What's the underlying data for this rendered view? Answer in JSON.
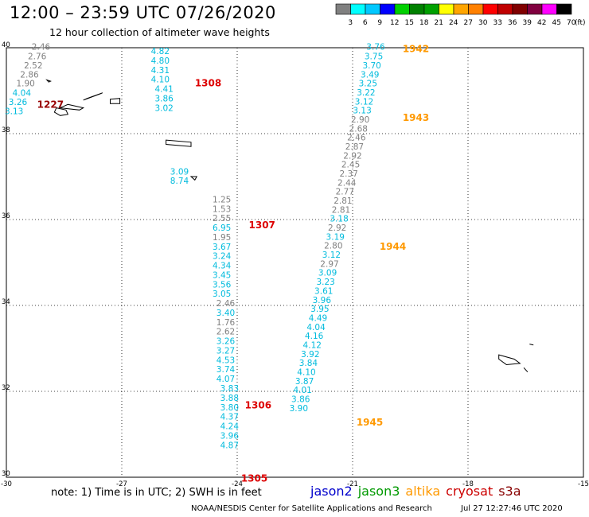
{
  "title": "12:00 – 23:59 UTC 07/26/2020",
  "subtitle": "12 hour collection of altimeter wave heights",
  "color_scale": {
    "unit": "(ft)",
    "colors": [
      "#808080",
      "#00ffff",
      "#00c8ff",
      "#0000ff",
      "#00d000",
      "#008000",
      "#00a000",
      "#ffff00",
      "#ffa500",
      "#ff8000",
      "#ff0000",
      "#c00000",
      "#800000",
      "#800040",
      "#ff00ff",
      "#000000"
    ],
    "labels": [
      "3",
      "6",
      "9",
      "12",
      "15",
      "18",
      "21",
      "24",
      "27",
      "30",
      "33",
      "36",
      "39",
      "42",
      "45",
      "70"
    ]
  },
  "lon_ticks": [
    "-30",
    "-27",
    "-24",
    "-21",
    "-18",
    "-15"
  ],
  "lat_ticks": [
    "40",
    "38",
    "36",
    "34",
    "32",
    "30"
  ],
  "passes": [
    {
      "label": "1942",
      "color": "#ff9900",
      "lon": -19.7,
      "lat": 39.9
    },
    {
      "label": "1943",
      "color": "#ff9900",
      "lon": -19.7,
      "lat": 38.3
    },
    {
      "label": "1944",
      "color": "#ff9900",
      "lon": -20.3,
      "lat": 35.3
    },
    {
      "label": "1945",
      "color": "#ff9900",
      "lon": -20.9,
      "lat": 31.2
    },
    {
      "label": "1308",
      "color": "#dd0000",
      "lon": -25.1,
      "lat": 39.1
    },
    {
      "label": "1307",
      "color": "#dd0000",
      "lon": -23.7,
      "lat": 35.8
    },
    {
      "label": "1306",
      "color": "#dd0000",
      "lon": -23.8,
      "lat": 31.6
    },
    {
      "label": "1305",
      "color": "#dd0000",
      "lon": -23.9,
      "lat": 29.9
    },
    {
      "label": "1227",
      "color": "#990000",
      "lon": -29.2,
      "lat": 38.6
    }
  ],
  "observations": [
    {
      "v": "2.46",
      "c": "#808080",
      "lon": -29.1,
      "lat": 39.95
    },
    {
      "v": "2.76",
      "c": "#808080",
      "lon": -29.2,
      "lat": 39.73
    },
    {
      "v": "2.52",
      "c": "#808080",
      "lon": -29.3,
      "lat": 39.52
    },
    {
      "v": "2.86",
      "c": "#808080",
      "lon": -29.4,
      "lat": 39.31
    },
    {
      "v": "1.90",
      "c": "#808080",
      "lon": -29.5,
      "lat": 39.1
    },
    {
      "v": "4.04",
      "c": "#00bbdd",
      "lon": -29.6,
      "lat": 38.88
    },
    {
      "v": "3.26",
      "c": "#00bbdd",
      "lon": -29.7,
      "lat": 38.67
    },
    {
      "v": "3.13",
      "c": "#00bbdd",
      "lon": -29.8,
      "lat": 38.45
    },
    {
      "v": "4.82",
      "c": "#00bbdd",
      "lon": -26.0,
      "lat": 39.85
    },
    {
      "v": "4.80",
      "c": "#00bbdd",
      "lon": -26.0,
      "lat": 39.63
    },
    {
      "v": "4.31",
      "c": "#00bbdd",
      "lon": -26.0,
      "lat": 39.41
    },
    {
      "v": "4.10",
      "c": "#00bbdd",
      "lon": -26.0,
      "lat": 39.19
    },
    {
      "v": "4.41",
      "c": "#00bbdd",
      "lon": -25.9,
      "lat": 38.97
    },
    {
      "v": "3.86",
      "c": "#00bbdd",
      "lon": -25.9,
      "lat": 38.75
    },
    {
      "v": "3.02",
      "c": "#00bbdd",
      "lon": -25.9,
      "lat": 38.53
    },
    {
      "v": "3.09",
      "c": "#00bbdd",
      "lon": -25.5,
      "lat": 37.05
    },
    {
      "v": "8.74",
      "c": "#00bbdd",
      "lon": -25.5,
      "lat": 36.83
    },
    {
      "v": "1.25",
      "c": "#808080",
      "lon": -24.4,
      "lat": 36.4
    },
    {
      "v": "1.53",
      "c": "#808080",
      "lon": -24.4,
      "lat": 36.18
    },
    {
      "v": "2.55",
      "c": "#808080",
      "lon": -24.4,
      "lat": 35.96
    },
    {
      "v": "6.95",
      "c": "#00bbdd",
      "lon": -24.4,
      "lat": 35.74
    },
    {
      "v": "1.95",
      "c": "#808080",
      "lon": -24.4,
      "lat": 35.52
    },
    {
      "v": "3.67",
      "c": "#00bbdd",
      "lon": -24.4,
      "lat": 35.3
    },
    {
      "v": "3.24",
      "c": "#00bbdd",
      "lon": -24.4,
      "lat": 35.08
    },
    {
      "v": "4.34",
      "c": "#00bbdd",
      "lon": -24.4,
      "lat": 34.86
    },
    {
      "v": "3.45",
      "c": "#00bbdd",
      "lon": -24.4,
      "lat": 34.64
    },
    {
      "v": "3.56",
      "c": "#00bbdd",
      "lon": -24.4,
      "lat": 34.42
    },
    {
      "v": "3.05",
      "c": "#00bbdd",
      "lon": -24.4,
      "lat": 34.2
    },
    {
      "v": "2.46",
      "c": "#808080",
      "lon": -24.3,
      "lat": 33.98
    },
    {
      "v": "3.40",
      "c": "#00bbdd",
      "lon": -24.3,
      "lat": 33.76
    },
    {
      "v": "1.76",
      "c": "#808080",
      "lon": -24.3,
      "lat": 33.54
    },
    {
      "v": "2.62",
      "c": "#808080",
      "lon": -24.3,
      "lat": 33.32
    },
    {
      "v": "3.26",
      "c": "#00bbdd",
      "lon": -24.3,
      "lat": 33.1
    },
    {
      "v": "3.27",
      "c": "#00bbdd",
      "lon": -24.3,
      "lat": 32.88
    },
    {
      "v": "4.53",
      "c": "#00bbdd",
      "lon": -24.3,
      "lat": 32.66
    },
    {
      "v": "3.74",
      "c": "#00bbdd",
      "lon": -24.3,
      "lat": 32.44
    },
    {
      "v": "4.07",
      "c": "#00bbdd",
      "lon": -24.3,
      "lat": 32.22
    },
    {
      "v": "3.83",
      "c": "#00bbdd",
      "lon": -24.2,
      "lat": 32.0
    },
    {
      "v": "3.88",
      "c": "#00bbdd",
      "lon": -24.2,
      "lat": 31.78
    },
    {
      "v": "3.80",
      "c": "#00bbdd",
      "lon": -24.2,
      "lat": 31.56
    },
    {
      "v": "4.37",
      "c": "#00bbdd",
      "lon": -24.2,
      "lat": 31.34
    },
    {
      "v": "4.24",
      "c": "#00bbdd",
      "lon": -24.2,
      "lat": 31.12
    },
    {
      "v": "3.96",
      "c": "#00bbdd",
      "lon": -24.2,
      "lat": 30.9
    },
    {
      "v": "4.87",
      "c": "#00bbdd",
      "lon": -24.2,
      "lat": 30.68
    },
    {
      "v": "3.76",
      "c": "#00bbdd",
      "lon": -20.4,
      "lat": 39.95
    },
    {
      "v": "3.75",
      "c": "#00bbdd",
      "lon": -20.45,
      "lat": 39.73
    },
    {
      "v": "3.70",
      "c": "#00bbdd",
      "lon": -20.5,
      "lat": 39.52
    },
    {
      "v": "3.49",
      "c": "#00bbdd",
      "lon": -20.55,
      "lat": 39.31
    },
    {
      "v": "3.25",
      "c": "#00bbdd",
      "lon": -20.6,
      "lat": 39.1
    },
    {
      "v": "3.22",
      "c": "#00bbdd",
      "lon": -20.65,
      "lat": 38.89
    },
    {
      "v": "3.12",
      "c": "#00bbdd",
      "lon": -20.7,
      "lat": 38.68
    },
    {
      "v": "3.13",
      "c": "#00bbdd",
      "lon": -20.75,
      "lat": 38.47
    },
    {
      "v": "2.90",
      "c": "#808080",
      "lon": -20.8,
      "lat": 38.26
    },
    {
      "v": "2.68",
      "c": "#808080",
      "lon": -20.85,
      "lat": 38.05
    },
    {
      "v": "2.46",
      "c": "#808080",
      "lon": -20.9,
      "lat": 37.84
    },
    {
      "v": "2.87",
      "c": "#808080",
      "lon": -20.95,
      "lat": 37.63
    },
    {
      "v": "2.92",
      "c": "#808080",
      "lon": -21.0,
      "lat": 37.42
    },
    {
      "v": "2.45",
      "c": "#808080",
      "lon": -21.05,
      "lat": 37.21
    },
    {
      "v": "2.37",
      "c": "#808080",
      "lon": -21.1,
      "lat": 37.0
    },
    {
      "v": "2.44",
      "c": "#808080",
      "lon": -21.15,
      "lat": 36.79
    },
    {
      "v": "2.77",
      "c": "#808080",
      "lon": -21.2,
      "lat": 36.58
    },
    {
      "v": "2.81",
      "c": "#808080",
      "lon": -21.25,
      "lat": 36.37
    },
    {
      "v": "2.81",
      "c": "#808080",
      "lon": -21.3,
      "lat": 36.16
    },
    {
      "v": "3.18",
      "c": "#00bbdd",
      "lon": -21.35,
      "lat": 35.95
    },
    {
      "v": "2.92",
      "c": "#808080",
      "lon": -21.4,
      "lat": 35.74
    },
    {
      "v": "3.19",
      "c": "#00bbdd",
      "lon": -21.45,
      "lat": 35.53
    },
    {
      "v": "2.80",
      "c": "#808080",
      "lon": -21.5,
      "lat": 35.32
    },
    {
      "v": "3.12",
      "c": "#00bbdd",
      "lon": -21.55,
      "lat": 35.11
    },
    {
      "v": "2.97",
      "c": "#808080",
      "lon": -21.6,
      "lat": 34.9
    },
    {
      "v": "3.09",
      "c": "#00bbdd",
      "lon": -21.65,
      "lat": 34.69
    },
    {
      "v": "3.23",
      "c": "#00bbdd",
      "lon": -21.7,
      "lat": 34.48
    },
    {
      "v": "3.61",
      "c": "#00bbdd",
      "lon": -21.75,
      "lat": 34.27
    },
    {
      "v": "3.96",
      "c": "#00bbdd",
      "lon": -21.8,
      "lat": 34.06
    },
    {
      "v": "3.95",
      "c": "#00bbdd",
      "lon": -21.85,
      "lat": 33.85
    },
    {
      "v": "4.49",
      "c": "#00bbdd",
      "lon": -21.9,
      "lat": 33.64
    },
    {
      "v": "4.04",
      "c": "#00bbdd",
      "lon": -21.95,
      "lat": 33.43
    },
    {
      "v": "4.16",
      "c": "#00bbdd",
      "lon": -22.0,
      "lat": 33.22
    },
    {
      "v": "4.12",
      "c": "#00bbdd",
      "lon": -22.05,
      "lat": 33.01
    },
    {
      "v": "3.92",
      "c": "#00bbdd",
      "lon": -22.1,
      "lat": 32.8
    },
    {
      "v": "3.84",
      "c": "#00bbdd",
      "lon": -22.15,
      "lat": 32.59
    },
    {
      "v": "4.10",
      "c": "#00bbdd",
      "lon": -22.2,
      "lat": 32.38
    },
    {
      "v": "3.87",
      "c": "#00bbdd",
      "lon": -22.25,
      "lat": 32.17
    },
    {
      "v": "4.01",
      "c": "#00bbdd",
      "lon": -22.3,
      "lat": 31.96
    },
    {
      "v": "3.86",
      "c": "#00bbdd",
      "lon": -22.35,
      "lat": 31.75
    },
    {
      "v": "3.90",
      "c": "#00bbdd",
      "lon": -22.4,
      "lat": 31.54
    }
  ],
  "islands": [
    {
      "name": "flores",
      "pts": [
        [
          -28.95,
          39.25
        ],
        [
          -28.85,
          39.22
        ],
        [
          -28.9,
          39.2
        ]
      ]
    },
    {
      "name": "graciosa-faial",
      "pts": [
        [
          -28.4,
          38.68
        ],
        [
          -28.0,
          38.6
        ],
        [
          -28.1,
          38.55
        ],
        [
          -28.6,
          38.6
        ]
      ]
    },
    {
      "name": "sao-jorge",
      "pts": [
        [
          -27.9,
          38.82
        ],
        [
          -27.5,
          38.95
        ],
        [
          -27.55,
          38.93
        ],
        [
          -28.0,
          38.78
        ]
      ]
    },
    {
      "name": "terceira",
      "pts": [
        [
          -27.3,
          38.8
        ],
        [
          -27.05,
          38.82
        ],
        [
          -27.05,
          38.7
        ],
        [
          -27.3,
          38.7
        ]
      ]
    },
    {
      "name": "pico-faial",
      "pts": [
        [
          -28.7,
          38.6
        ],
        [
          -28.45,
          38.55
        ],
        [
          -28.4,
          38.45
        ],
        [
          -28.6,
          38.42
        ],
        [
          -28.75,
          38.5
        ]
      ]
    },
    {
      "name": "sao-miguel",
      "pts": [
        [
          -25.85,
          37.85
        ],
        [
          -25.2,
          37.8
        ],
        [
          -25.2,
          37.7
        ],
        [
          -25.85,
          37.75
        ]
      ]
    },
    {
      "name": "santa-maria",
      "pts": [
        [
          -25.2,
          37.0
        ],
        [
          -25.05,
          37.0
        ],
        [
          -25.1,
          36.92
        ]
      ]
    },
    {
      "name": "madeira",
      "pts": [
        [
          -17.2,
          32.85
        ],
        [
          -16.8,
          32.75
        ],
        [
          -16.65,
          32.65
        ],
        [
          -17.0,
          32.62
        ],
        [
          -17.2,
          32.75
        ]
      ]
    },
    {
      "name": "porto-santo",
      "pts": [
        [
          -16.4,
          33.1
        ],
        [
          -16.3,
          33.08
        ]
      ]
    },
    {
      "name": "desertas",
      "pts": [
        [
          -16.55,
          32.55
        ],
        [
          -16.45,
          32.45
        ]
      ]
    }
  ],
  "note": "note: 1) Time is in UTC; 2) SWH is in feet",
  "satellites": [
    {
      "name": "jason2",
      "color": "#0000cc"
    },
    {
      "name": "jason3",
      "color": "#009900"
    },
    {
      "name": "altika",
      "color": "#ff9900"
    },
    {
      "name": "cryosat",
      "color": "#cc0000"
    },
    {
      "name": "s3a",
      "color": "#880000"
    }
  ],
  "credit": "NOAA/NESDIS Center for Satellite Applications and Research",
  "timestamp": "Jul 27 12:27:46 UTC 2020"
}
